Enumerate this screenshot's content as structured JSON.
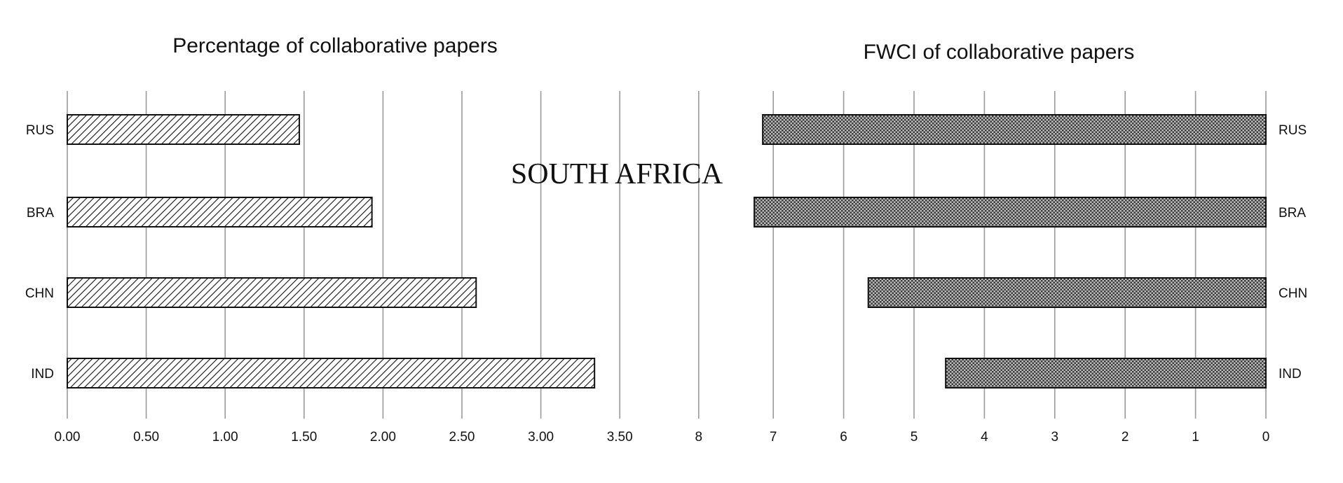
{
  "center_label": "SOUTH AFRICA",
  "chart_data": [
    {
      "type": "bar",
      "orientation": "horizontal",
      "title": "Percentage of collaborative papers",
      "categories": [
        "RUS",
        "BRA",
        "CHN",
        "IND"
      ],
      "values": [
        1.47,
        1.93,
        2.59,
        3.34
      ],
      "x_ticks": [
        "0.00",
        "0.50",
        "1.00",
        "1.50",
        "2.00",
        "2.50",
        "3.00",
        "3.50",
        "8"
      ],
      "xlim": [
        0,
        4.0
      ],
      "grid": true,
      "bar_fill": "diagonal-hatch"
    },
    {
      "type": "bar",
      "orientation": "horizontal",
      "axis_reversed": true,
      "title": "FWCI of collaborative papers",
      "categories": [
        "RUS",
        "BRA",
        "CHN",
        "IND"
      ],
      "values": [
        7.15,
        7.27,
        5.65,
        4.55
      ],
      "x_ticks": [
        "7",
        "6",
        "5",
        "4",
        "3",
        "2",
        "1",
        "0"
      ],
      "xlim": [
        0,
        7
      ],
      "grid": true,
      "bar_fill": "crosshatch"
    }
  ]
}
